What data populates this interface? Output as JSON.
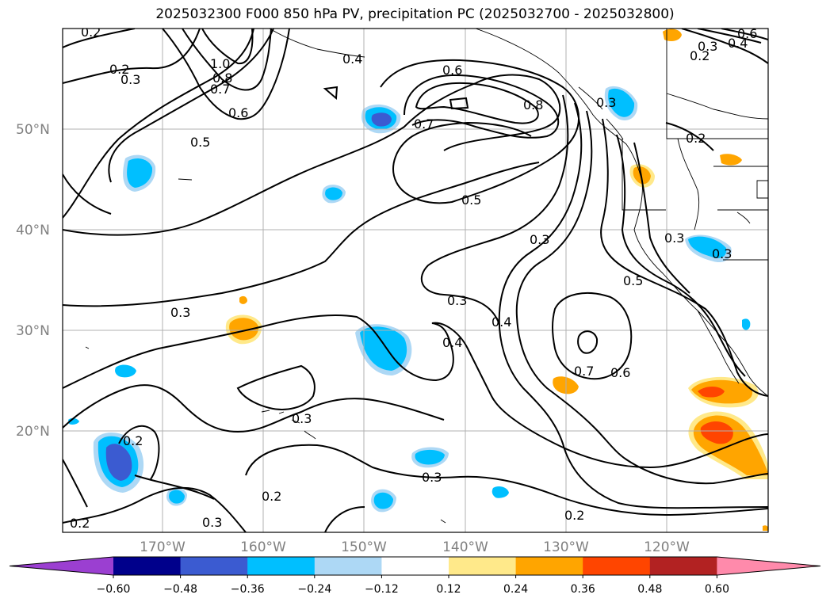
{
  "title": "2025032300 F000 850 hPa PV, precipitation PC (2025032700 - 2025032800)",
  "map": {
    "lat_labels": [
      "50°N",
      "40°N",
      "30°N",
      "20°N"
    ],
    "lon_labels": [
      "170°W",
      "160°W",
      "150°W",
      "140°W",
      "130°W",
      "120°W"
    ],
    "contour_labels": [
      "0.2",
      "0.2",
      "0.3",
      "1.0",
      "0.8",
      "0.7",
      "0.6",
      "0.5",
      "0.4",
      "0.6",
      "0.7",
      "0.8",
      "0.3",
      "0.5",
      "0.3",
      "0.5",
      "0.3",
      "0.3",
      "0.4",
      "0.4",
      "0.3",
      "0.7",
      "0.6",
      "0.3",
      "0.2",
      "0.3",
      "0.2",
      "0.3",
      "0.2",
      "0.2",
      "0.3",
      "0.4",
      "0.6",
      "0.2",
      "0.3",
      "0.2"
    ],
    "ocean_color": "#ffffff",
    "contour_color": "#000000"
  },
  "colorbar": {
    "ticks": [
      "−0.60",
      "−0.48",
      "−0.36",
      "−0.24",
      "−0.12",
      "0.12",
      "0.24",
      "0.36",
      "0.48",
      "0.60"
    ],
    "colors": [
      "#9b3fd1",
      "#00008b",
      "#3b5bd1",
      "#00bfff",
      "#add8f5",
      "#ffffff",
      "#ffe98a",
      "#ffa500",
      "#ff4500",
      "#b22222",
      "#ff8aab"
    ]
  }
}
